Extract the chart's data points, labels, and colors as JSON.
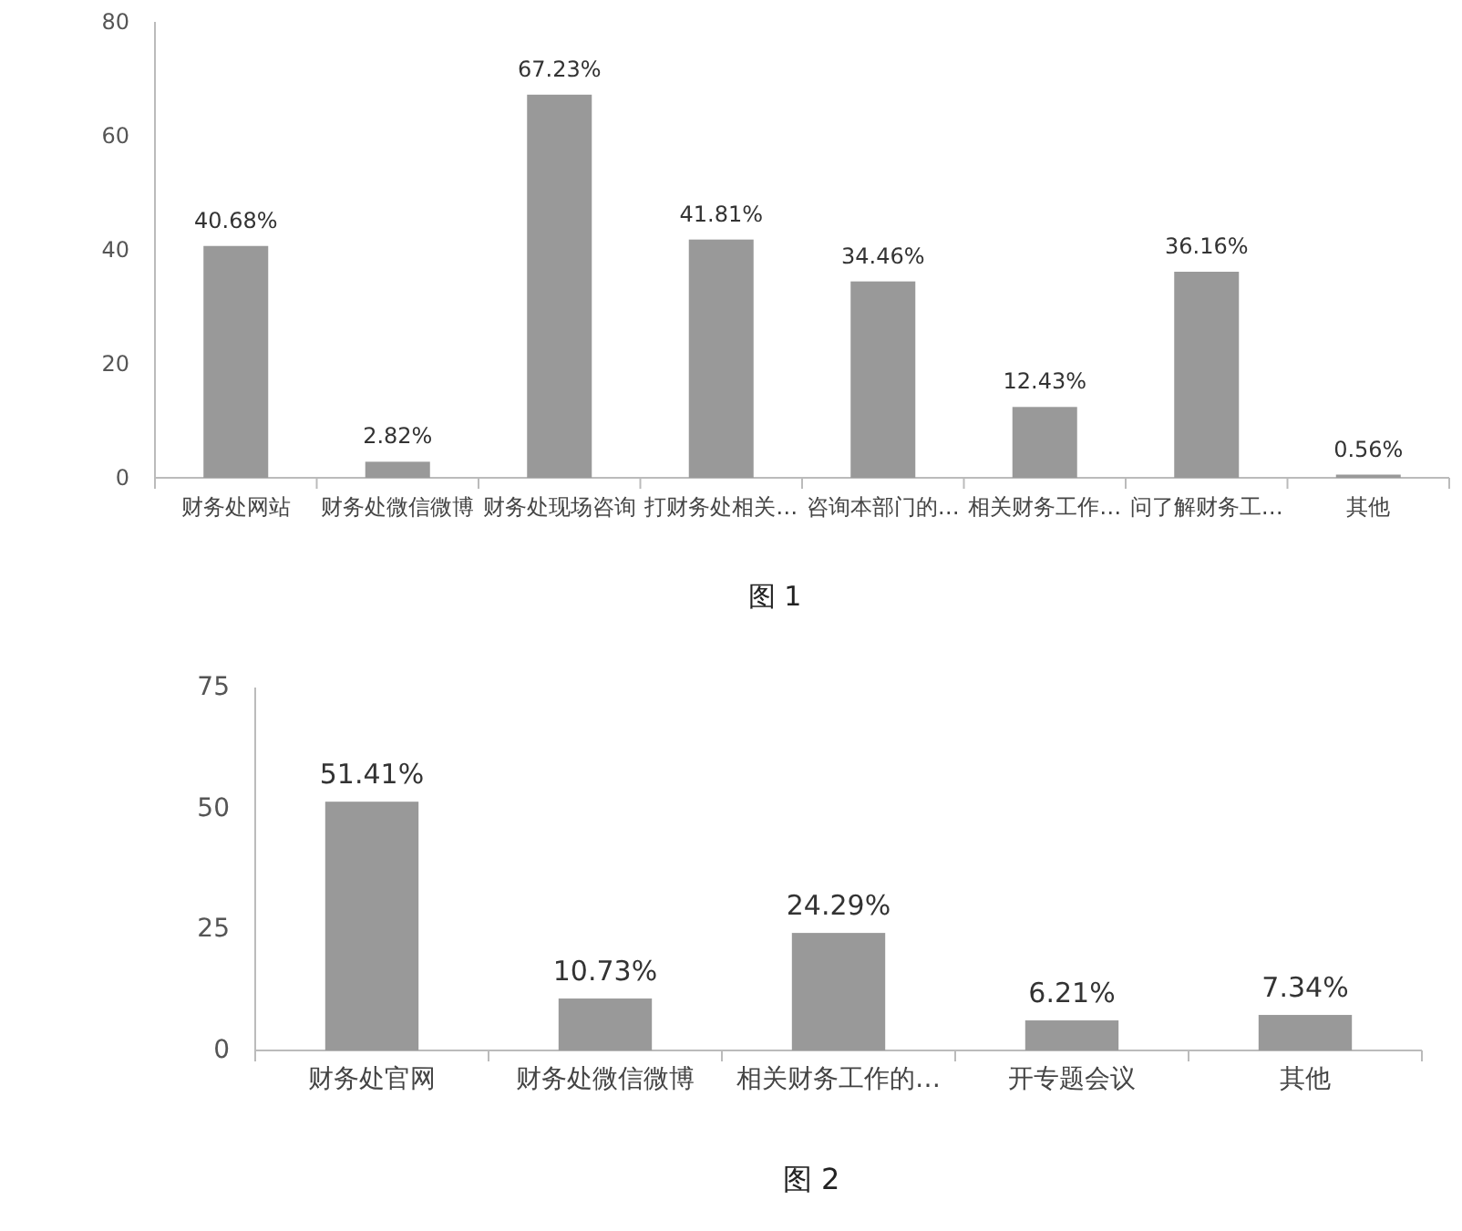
{
  "chart_data": [
    {
      "type": "bar",
      "categories": [
        "财务处网站",
        "财务处微信微博",
        "财务处现场咨询",
        "打财务处相关…",
        "咨询本部门的…",
        "相关财务工作…",
        "问了解财务工…",
        "其他"
      ],
      "values": [
        40.68,
        2.82,
        67.23,
        41.81,
        34.46,
        12.43,
        36.16,
        0.56
      ],
      "value_labels": [
        "40.68%",
        "2.82%",
        "67.23%",
        "41.81%",
        "34.46%",
        "12.43%",
        "36.16%",
        "0.56%"
      ],
      "color": "#999999",
      "ylim": [
        0,
        80
      ],
      "yticks": [
        0,
        20,
        40,
        60,
        80
      ],
      "grid": false,
      "annotations": [
        "图 1"
      ]
    },
    {
      "type": "bar",
      "categories": [
        "财务处官网",
        "财务处微信微博",
        "相关财务工作的…",
        "开专题会议",
        "其他"
      ],
      "values": [
        51.41,
        10.73,
        24.29,
        6.21,
        7.34
      ],
      "value_labels": [
        "51.41%",
        "10.73%",
        "24.29%",
        "6.21%",
        "7.34%"
      ],
      "color": "#999999",
      "ylim": [
        0,
        75
      ],
      "yticks": [
        0,
        25,
        50,
        75
      ],
      "grid": false,
      "annotations": [
        "图 2"
      ]
    }
  ]
}
